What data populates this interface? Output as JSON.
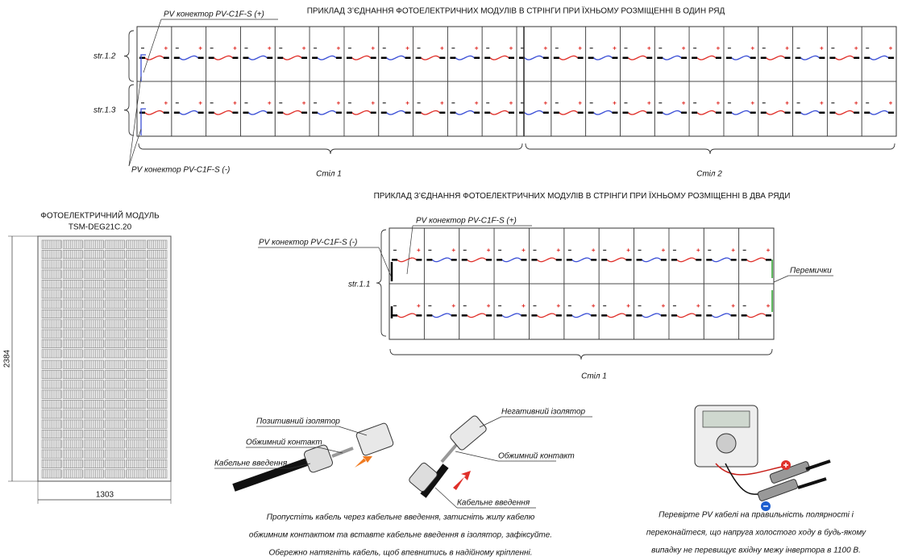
{
  "diagram_1": {
    "title": "ПРИКЛАД З’ЄДНАННЯ ФОТОЕЛЕКТРИЧНИХ МОДУЛІВ В СТРІНГИ ПРИ ЇХНЬОМУ РОЗМІЩЕННІ В ОДИН РЯД",
    "connector_plus": "PV конектор PV-C1F-S (+)",
    "connector_minus": "PV конектор PV-C1F-S (-)",
    "strings": [
      "str.1.2",
      "str.1.3"
    ],
    "tables": [
      "Стіл 1",
      "Стіл 2"
    ]
  },
  "diagram_2": {
    "title": "ПРИКЛАД З’ЄДНАННЯ ФОТОЕЛЕКТРИЧНИХ МОДУЛІВ В СТРІНГИ ПРИ ЇХНЬОМУ РОЗМІЩЕННІ В ДВА РЯДИ",
    "connector_plus": "PV конектор PV-C1F-S (+)",
    "connector_minus": "PV конектор PV-C1F-S (-)",
    "string": "str.1.1",
    "jumpers": "Перемички",
    "table": "Стіл 1"
  },
  "module": {
    "title": "ФОТОЕЛЕКТРИЧНИЙ МОДУЛЬ",
    "model": "TSM-DEG21C.20",
    "height": 2384,
    "width": 1303
  },
  "assembly": {
    "positive_insulator": "Позитивний ізолятор",
    "crimp_contact_1": "Обжимний контакт",
    "cable_gland_1": "Кабельне введення",
    "negative_insulator": "Негативний ізолятор",
    "crimp_contact_2": "Обжимний контакт",
    "cable_gland_2": "Кабельне введення",
    "instructions": [
      "Пропустіть кабель через кабельне введення, затисніть жилу кабелю",
      "обжимним контактом та вставте кабельне введення в ізолятор, зафіксуйте.",
      "Обережно натягніть кабель, щоб впевнитись в надійному кріпленні."
    ]
  },
  "check": {
    "text": [
      "Перевірте PV кабелі на правильність полярності і",
      "переконайтеся, що напруга холостого ходу в будь-якому",
      "випадку не перевищує вхідну межу інвертора в 1100 В."
    ]
  }
}
